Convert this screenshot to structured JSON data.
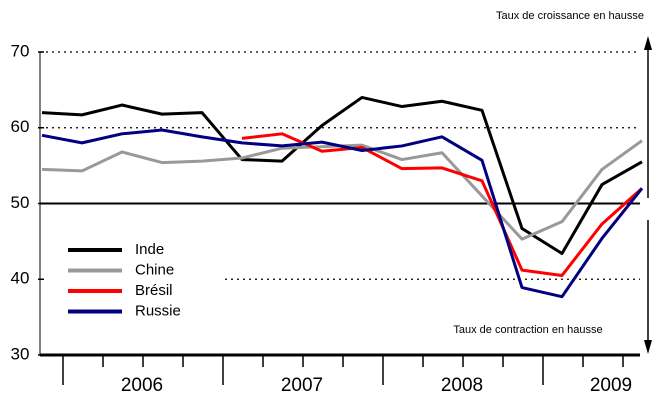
{
  "chart_data": {
    "type": "line",
    "annotations": [
      "Taux de croissance en hausse",
      "Taux de contraction en hausse"
    ],
    "categories": [
      null,
      null,
      null,
      null,
      null,
      null,
      null,
      null,
      null,
      null,
      null,
      null,
      null,
      null,
      null,
      null
    ],
    "x_groups": [
      "2006",
      "2007",
      "2008",
      "2009"
    ],
    "series": [
      {
        "name": "Inde",
        "color": "#000000",
        "values": [
          62,
          61.7,
          63,
          61.8,
          62,
          55.8,
          55.6,
          60.3,
          64,
          62.8,
          63.5,
          62.3,
          46.7,
          43.4,
          52.5,
          55.5
        ]
      },
      {
        "name": "Chine",
        "color": "#999999",
        "values": [
          54.5,
          54.3,
          56.8,
          55.4,
          55.6,
          56,
          57.3,
          57.5,
          57.7,
          55.8,
          56.7,
          51,
          45.3,
          47.6,
          54.5,
          58.3
        ]
      },
      {
        "name": "Brésil",
        "color": "#ff0000",
        "values": [
          null,
          null,
          null,
          null,
          null,
          58.6,
          59.2,
          56.9,
          57.4,
          54.6,
          54.7,
          53,
          41.2,
          40.5,
          47.3,
          52
        ]
      },
      {
        "name": "Russie",
        "color": "#000080",
        "values": [
          59,
          58,
          59.2,
          59.7,
          58.8,
          58,
          57.6,
          58.1,
          57,
          57.6,
          58.8,
          55.7,
          38.9,
          37.7,
          45.4,
          52
        ]
      }
    ],
    "ylim": [
      30,
      70
    ],
    "yticks": [
      30,
      40,
      50,
      60,
      70
    ],
    "reference": 50
  }
}
